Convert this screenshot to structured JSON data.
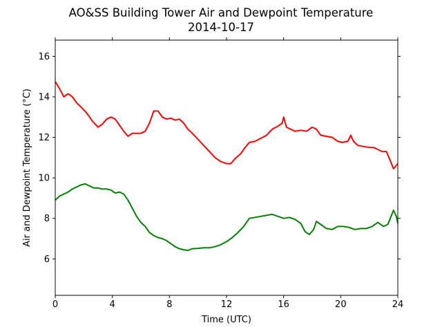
{
  "chart_data": {
    "type": "line",
    "title": "AO&SS Building Tower Air and Dewpoint Temperature",
    "subtitle": "2014-10-17",
    "xlabel": "Time (UTC)",
    "ylabel": "Air and Dewpoint Temperature (°C)",
    "xlim": [
      0,
      24
    ],
    "ylim": [
      4.2,
      16.8
    ],
    "xticks": [
      "0",
      "4",
      "8",
      "12",
      "16",
      "20",
      "24"
    ],
    "yticks": [
      "6",
      "8",
      "10",
      "12",
      "14",
      "16"
    ],
    "grid": false,
    "legend": "none",
    "series": [
      {
        "color": "#ff0000",
        "points": [
          [
            0.0,
            14.75
          ],
          [
            0.3,
            14.4
          ],
          [
            0.6,
            14.0
          ],
          [
            0.9,
            14.15
          ],
          [
            1.2,
            14.0
          ],
          [
            1.5,
            13.7
          ],
          [
            1.8,
            13.5
          ],
          [
            2.2,
            13.2
          ],
          [
            2.6,
            12.8
          ],
          [
            3.0,
            12.5
          ],
          [
            3.3,
            12.65
          ],
          [
            3.6,
            12.9
          ],
          [
            3.9,
            13.0
          ],
          [
            4.2,
            12.9
          ],
          [
            4.5,
            12.6
          ],
          [
            4.8,
            12.3
          ],
          [
            5.1,
            12.05
          ],
          [
            5.4,
            12.2
          ],
          [
            5.7,
            12.2
          ],
          [
            6.0,
            12.2
          ],
          [
            6.3,
            12.3
          ],
          [
            6.6,
            12.7
          ],
          [
            6.9,
            13.3
          ],
          [
            7.2,
            13.3
          ],
          [
            7.5,
            13.0
          ],
          [
            7.8,
            12.9
          ],
          [
            8.1,
            12.95
          ],
          [
            8.4,
            12.85
          ],
          [
            8.7,
            12.9
          ],
          [
            9.0,
            12.7
          ],
          [
            9.3,
            12.4
          ],
          [
            9.6,
            12.2
          ],
          [
            10.0,
            11.9
          ],
          [
            10.4,
            11.6
          ],
          [
            10.8,
            11.3
          ],
          [
            11.2,
            11.0
          ],
          [
            11.6,
            10.8
          ],
          [
            12.0,
            10.7
          ],
          [
            12.3,
            10.7
          ],
          [
            12.6,
            10.95
          ],
          [
            13.0,
            11.2
          ],
          [
            13.3,
            11.5
          ],
          [
            13.6,
            11.75
          ],
          [
            14.0,
            11.8
          ],
          [
            14.4,
            11.95
          ],
          [
            14.8,
            12.1
          ],
          [
            15.2,
            12.4
          ],
          [
            15.6,
            12.55
          ],
          [
            15.9,
            12.7
          ],
          [
            16.0,
            13.0
          ],
          [
            16.2,
            12.5
          ],
          [
            16.5,
            12.4
          ],
          [
            16.8,
            12.3
          ],
          [
            17.2,
            12.35
          ],
          [
            17.6,
            12.3
          ],
          [
            18.0,
            12.5
          ],
          [
            18.3,
            12.4
          ],
          [
            18.6,
            12.1
          ],
          [
            19.0,
            12.05
          ],
          [
            19.4,
            12.0
          ],
          [
            19.8,
            11.8
          ],
          [
            20.1,
            11.75
          ],
          [
            20.5,
            11.8
          ],
          [
            20.7,
            12.1
          ],
          [
            20.9,
            11.8
          ],
          [
            21.2,
            11.6
          ],
          [
            21.6,
            11.55
          ],
          [
            22.0,
            11.5
          ],
          [
            22.3,
            11.5
          ],
          [
            22.6,
            11.4
          ],
          [
            22.9,
            11.3
          ],
          [
            23.2,
            11.3
          ],
          [
            23.5,
            10.8
          ],
          [
            23.7,
            10.45
          ],
          [
            24.0,
            10.7
          ]
        ]
      },
      {
        "color": "#008000",
        "points": [
          [
            0.0,
            8.9
          ],
          [
            0.3,
            9.1
          ],
          [
            0.6,
            9.2
          ],
          [
            0.9,
            9.3
          ],
          [
            1.2,
            9.45
          ],
          [
            1.5,
            9.55
          ],
          [
            1.8,
            9.65
          ],
          [
            2.1,
            9.7
          ],
          [
            2.4,
            9.6
          ],
          [
            2.7,
            9.5
          ],
          [
            3.0,
            9.5
          ],
          [
            3.3,
            9.45
          ],
          [
            3.6,
            9.45
          ],
          [
            3.9,
            9.4
          ],
          [
            4.2,
            9.25
          ],
          [
            4.5,
            9.3
          ],
          [
            4.8,
            9.2
          ],
          [
            5.1,
            8.9
          ],
          [
            5.4,
            8.5
          ],
          [
            5.7,
            8.1
          ],
          [
            6.0,
            7.8
          ],
          [
            6.3,
            7.6
          ],
          [
            6.6,
            7.3
          ],
          [
            6.9,
            7.15
          ],
          [
            7.2,
            7.05
          ],
          [
            7.5,
            7.0
          ],
          [
            7.8,
            6.9
          ],
          [
            8.1,
            6.75
          ],
          [
            8.4,
            6.6
          ],
          [
            8.7,
            6.5
          ],
          [
            9.0,
            6.45
          ],
          [
            9.3,
            6.42
          ],
          [
            9.6,
            6.5
          ],
          [
            10.0,
            6.52
          ],
          [
            10.4,
            6.55
          ],
          [
            10.8,
            6.55
          ],
          [
            11.2,
            6.6
          ],
          [
            11.6,
            6.7
          ],
          [
            12.0,
            6.85
          ],
          [
            12.4,
            7.05
          ],
          [
            12.8,
            7.3
          ],
          [
            13.2,
            7.6
          ],
          [
            13.6,
            8.0
          ],
          [
            14.0,
            8.05
          ],
          [
            14.4,
            8.1
          ],
          [
            14.8,
            8.15
          ],
          [
            15.2,
            8.2
          ],
          [
            15.6,
            8.1
          ],
          [
            16.0,
            8.0
          ],
          [
            16.4,
            8.05
          ],
          [
            16.8,
            7.95
          ],
          [
            17.2,
            7.75
          ],
          [
            17.5,
            7.35
          ],
          [
            17.8,
            7.2
          ],
          [
            18.1,
            7.45
          ],
          [
            18.3,
            7.85
          ],
          [
            18.6,
            7.7
          ],
          [
            19.0,
            7.5
          ],
          [
            19.4,
            7.45
          ],
          [
            19.8,
            7.6
          ],
          [
            20.2,
            7.6
          ],
          [
            20.6,
            7.55
          ],
          [
            21.0,
            7.45
          ],
          [
            21.4,
            7.5
          ],
          [
            21.8,
            7.5
          ],
          [
            22.2,
            7.6
          ],
          [
            22.6,
            7.8
          ],
          [
            23.0,
            7.6
          ],
          [
            23.3,
            7.7
          ],
          [
            23.5,
            8.05
          ],
          [
            23.7,
            8.4
          ],
          [
            23.9,
            8.1
          ],
          [
            24.0,
            7.75
          ]
        ]
      }
    ]
  }
}
